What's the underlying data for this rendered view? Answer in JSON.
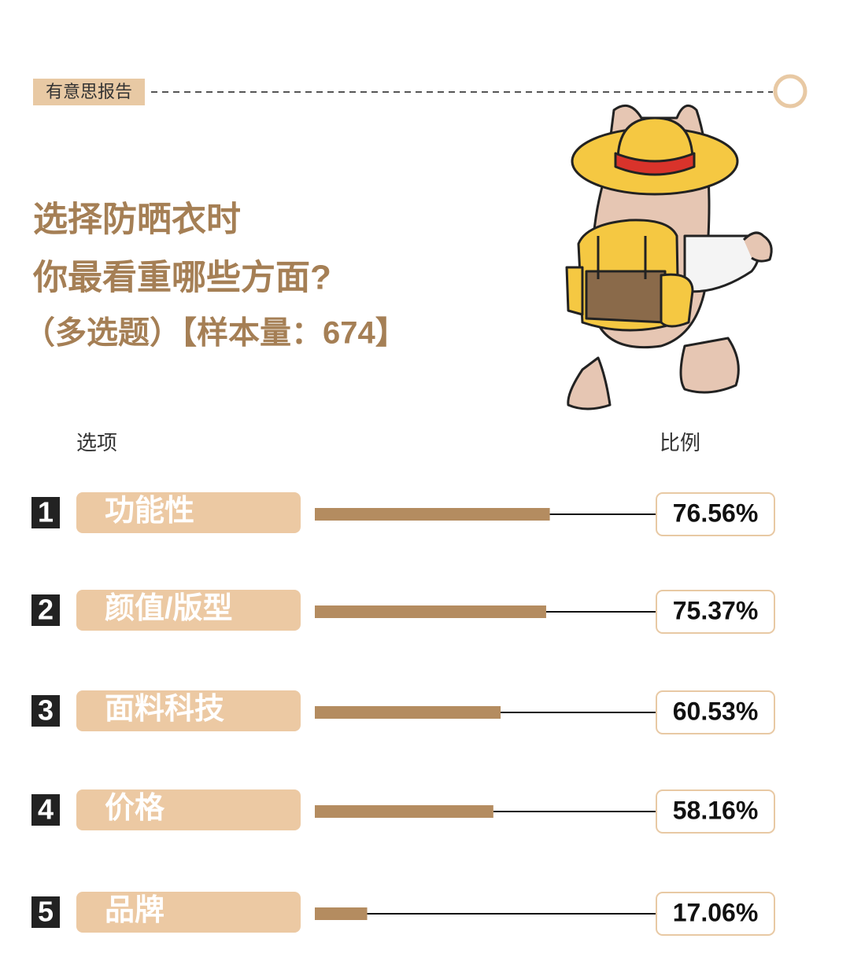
{
  "header": {
    "tag": "有意思报告"
  },
  "chart_data": {
    "type": "bar",
    "title_lines": [
      "选择防晒衣时",
      "你最看重哪些方面?"
    ],
    "subtitle": "（多选题）【样本量：674】",
    "column_headers": [
      "选项",
      "比例"
    ],
    "ranks": [
      "1",
      "2",
      "3",
      "4",
      "5"
    ],
    "categories": [
      "功能性",
      "颜值/版型",
      "面料科技",
      "价格",
      "品牌"
    ],
    "values": [
      76.56,
      75.37,
      60.53,
      58.16,
      17.06
    ],
    "value_labels": [
      "76.56%",
      "75.37%",
      "60.53%",
      "58.16%",
      "17.06%"
    ],
    "xlim": [
      0,
      100
    ],
    "color": "#b48c60"
  }
}
